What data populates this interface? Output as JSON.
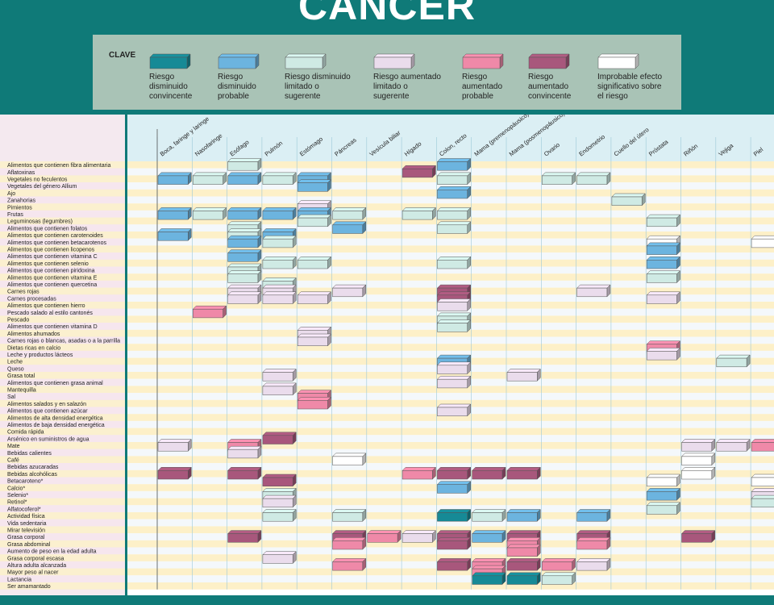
{
  "title": "CÁNCER",
  "legend": {
    "title": "CLAVE",
    "items": [
      {
        "label": "Riesgo\ndisminuido\nconvincente",
        "color": "#168a96"
      },
      {
        "label": "Riesgo\ndisminuido\nprobable",
        "color": "#6cb4df"
      },
      {
        "label": "Riesgo disminuido\nlimitado o\nsugerente",
        "color": "#cfeae4"
      },
      {
        "label": "Riesgo aumentado\nlimitado o\nsugerente",
        "color": "#eadcec"
      },
      {
        "label": "Riesgo\naumentado\nprobable",
        "color": "#ef89a8"
      },
      {
        "label": "Riesgo\naumentado\nconvincente",
        "color": "#a8577c"
      },
      {
        "label": "Improbable efecto\nsignificativo sobre\nel riesgo",
        "color": "#ffffff"
      }
    ]
  },
  "chart_data": {
    "type": "table",
    "columns": [
      "Boca, faringe y laringe",
      "Nasofaringe",
      "Esófago",
      "Pulmón",
      "Estómago",
      "Páncreas",
      "Vesícula biliar",
      "Hígado",
      "Colon, recto",
      "Mama (premenopáusico)",
      "Mama (posmenopáusico)",
      "Ovario",
      "Endometrio",
      "Cuello del útero",
      "Próstata",
      "Riñón",
      "Vejiga",
      "Piel"
    ],
    "rows": [
      "Alimentos que contienen fibra alimentaria",
      "Aflatoxinas",
      "Vegetales no feculentos",
      "Vegetales del género Allium",
      "Ajo",
      "Zanahorias",
      "Pimientos",
      "Frutas",
      "Leguminosas (legumbres)",
      "Alimentos que contienen folatos",
      "Alimentos que contienen carotenoides",
      "Alimentos que contienen betacarotenos",
      "Alimentos que contienen licopenos",
      "Alimentos que contienen vitamina C",
      "Alimentos que contienen selenio",
      "Alimentos que contienen piridoxina",
      "Alimentos que contienen vitamina E",
      "Alimentos que contienen quercetina",
      "Carnes rojas",
      "Carnes procesadas",
      "Alimentos que contienen hierro",
      "Pescado salado al estilo cantonés",
      "Pescado",
      "Alimentos que contienen vitamina D",
      "Alimentos ahumados",
      "Carnes rojas o blancas, asadas o a la parrilla",
      "Dietas ricas en calcio",
      "Leche y productos lácteos",
      "Leche",
      "Queso",
      "Grasa total",
      "Alimentos que contienen grasa animal",
      "Mantequilla",
      "Sal",
      "Alimentos salados y en salazón",
      "Alimentos que contienen azúcar",
      "Alimentos de alta densidad energética",
      "Alimentos de baja densidad energética",
      "Comida rápida",
      "Arsénico en suministros de agua",
      "Mate",
      "Bebidas calientes",
      "Café",
      "Bebidas azucaradas",
      "Bebidas alcohólicas",
      "Betacaroteno*",
      "Calcio*",
      "Selenio*",
      "Retinol*",
      "Alfatocoferol*",
      "Actividad física",
      "Vida sedentaria",
      "Mirar televisión",
      "Grasa corporal",
      "Grasa abdominal",
      "Aumento de peso en la edad adulta",
      "Grasa corporal escasa",
      "Altura adulta alcanzada",
      "Mayor peso al nacer",
      "Lactancia",
      "Ser amamantado"
    ],
    "cells": [
      {
        "row": 0,
        "col": 2,
        "level": "limitado-disminuido"
      },
      {
        "row": 0,
        "col": 8,
        "level": "probable-disminuido"
      },
      {
        "row": 1,
        "col": 7,
        "level": "convincente-aumentado"
      },
      {
        "row": 2,
        "col": 0,
        "level": "probable-disminuido"
      },
      {
        "row": 2,
        "col": 1,
        "level": "limitado-disminuido"
      },
      {
        "row": 2,
        "col": 2,
        "level": "probable-disminuido"
      },
      {
        "row": 2,
        "col": 3,
        "level": "limitado-disminuido"
      },
      {
        "row": 2,
        "col": 4,
        "level": "probable-disminuido"
      },
      {
        "row": 2,
        "col": 8,
        "level": "limitado-disminuido"
      },
      {
        "row": 2,
        "col": 11,
        "level": "limitado-disminuido"
      },
      {
        "row": 2,
        "col": 12,
        "level": "limitado-disminuido"
      },
      {
        "row": 3,
        "col": 4,
        "level": "probable-disminuido"
      },
      {
        "row": 4,
        "col": 8,
        "level": "probable-disminuido"
      },
      {
        "row": 5,
        "col": 13,
        "level": "limitado-disminuido"
      },
      {
        "row": 6,
        "col": 4,
        "level": "limitado-aumentado"
      },
      {
        "row": 7,
        "col": 0,
        "level": "probable-disminuido"
      },
      {
        "row": 7,
        "col": 1,
        "level": "limitado-disminuido"
      },
      {
        "row": 7,
        "col": 2,
        "level": "probable-disminuido"
      },
      {
        "row": 7,
        "col": 3,
        "level": "probable-disminuido"
      },
      {
        "row": 7,
        "col": 4,
        "level": "probable-disminuido"
      },
      {
        "row": 7,
        "col": 5,
        "level": "limitado-disminuido"
      },
      {
        "row": 7,
        "col": 7,
        "level": "limitado-disminuido"
      },
      {
        "row": 7,
        "col": 8,
        "level": "limitado-disminuido"
      },
      {
        "row": 8,
        "col": 4,
        "level": "limitado-disminuido"
      },
      {
        "row": 8,
        "col": 14,
        "level": "limitado-disminuido"
      },
      {
        "row": 9,
        "col": 2,
        "level": "limitado-disminuido"
      },
      {
        "row": 9,
        "col": 5,
        "level": "probable-disminuido"
      },
      {
        "row": 9,
        "col": 8,
        "level": "limitado-disminuido"
      },
      {
        "row": 10,
        "col": 0,
        "level": "probable-disminuido"
      },
      {
        "row": 10,
        "col": 2,
        "level": "limitado-disminuido"
      },
      {
        "row": 10,
        "col": 3,
        "level": "probable-disminuido"
      },
      {
        "row": 11,
        "col": 2,
        "level": "probable-disminuido"
      },
      {
        "row": 11,
        "col": 3,
        "level": "limitado-disminuido"
      },
      {
        "row": 11,
        "col": 14,
        "level": "improbable"
      },
      {
        "row": 11,
        "col": 17,
        "level": "improbable"
      },
      {
        "row": 12,
        "col": 14,
        "level": "probable-disminuido"
      },
      {
        "row": 13,
        "col": 2,
        "level": "probable-disminuido"
      },
      {
        "row": 14,
        "col": 3,
        "level": "limitado-disminuido"
      },
      {
        "row": 14,
        "col": 4,
        "level": "limitado-disminuido"
      },
      {
        "row": 14,
        "col": 8,
        "level": "limitado-disminuido"
      },
      {
        "row": 14,
        "col": 14,
        "level": "probable-disminuido"
      },
      {
        "row": 15,
        "col": 2,
        "level": "limitado-disminuido"
      },
      {
        "row": 16,
        "col": 2,
        "level": "limitado-disminuido"
      },
      {
        "row": 16,
        "col": 14,
        "level": "limitado-disminuido"
      },
      {
        "row": 17,
        "col": 3,
        "level": "limitado-disminuido"
      },
      {
        "row": 18,
        "col": 2,
        "level": "limitado-aumentado"
      },
      {
        "row": 18,
        "col": 3,
        "level": "limitado-aumentado"
      },
      {
        "row": 18,
        "col": 5,
        "level": "limitado-aumentado"
      },
      {
        "row": 18,
        "col": 8,
        "level": "convincente-aumentado"
      },
      {
        "row": 18,
        "col": 12,
        "level": "limitado-aumentado"
      },
      {
        "row": 19,
        "col": 2,
        "level": "limitado-aumentado"
      },
      {
        "row": 19,
        "col": 3,
        "level": "limitado-aumentado"
      },
      {
        "row": 19,
        "col": 4,
        "level": "limitado-aumentado"
      },
      {
        "row": 19,
        "col": 8,
        "level": "convincente-aumentado"
      },
      {
        "row": 19,
        "col": 14,
        "level": "limitado-aumentado"
      },
      {
        "row": 20,
        "col": 8,
        "level": "limitado-aumentado"
      },
      {
        "row": 21,
        "col": 1,
        "level": "probable-aumentado"
      },
      {
        "row": 22,
        "col": 8,
        "level": "limitado-disminuido"
      },
      {
        "row": 23,
        "col": 8,
        "level": "limitado-disminuido"
      },
      {
        "row": 24,
        "col": 4,
        "level": "limitado-aumentado"
      },
      {
        "row": 25,
        "col": 4,
        "level": "limitado-aumentado"
      },
      {
        "row": 26,
        "col": 14,
        "level": "probable-aumentado"
      },
      {
        "row": 27,
        "col": 14,
        "level": "limitado-aumentado"
      },
      {
        "row": 28,
        "col": 8,
        "level": "probable-disminuido"
      },
      {
        "row": 28,
        "col": 16,
        "level": "limitado-disminuido"
      },
      {
        "row": 29,
        "col": 8,
        "level": "limitado-aumentado"
      },
      {
        "row": 30,
        "col": 3,
        "level": "limitado-aumentado"
      },
      {
        "row": 30,
        "col": 10,
        "level": "limitado-aumentado"
      },
      {
        "row": 31,
        "col": 8,
        "level": "limitado-aumentado"
      },
      {
        "row": 32,
        "col": 3,
        "level": "limitado-aumentado"
      },
      {
        "row": 33,
        "col": 4,
        "level": "probable-aumentado"
      },
      {
        "row": 34,
        "col": 4,
        "level": "probable-aumentado"
      },
      {
        "row": 35,
        "col": 8,
        "level": "limitado-aumentado"
      },
      {
        "row": 39,
        "col": 3,
        "level": "convincente-aumentado"
      },
      {
        "row": 40,
        "col": 0,
        "level": "limitado-aumentado"
      },
      {
        "row": 40,
        "col": 2,
        "level": "probable-aumentado"
      },
      {
        "row": 40,
        "col": 15,
        "level": "limitado-aumentado"
      },
      {
        "row": 40,
        "col": 16,
        "level": "limitado-aumentado"
      },
      {
        "row": 40,
        "col": 17,
        "level": "probable-aumentado"
      },
      {
        "row": 41,
        "col": 2,
        "level": "limitado-aumentado"
      },
      {
        "row": 42,
        "col": 5,
        "level": "improbable"
      },
      {
        "row": 42,
        "col": 15,
        "level": "improbable"
      },
      {
        "row": 44,
        "col": 0,
        "level": "convincente-aumentado"
      },
      {
        "row": 44,
        "col": 2,
        "level": "convincente-aumentado"
      },
      {
        "row": 44,
        "col": 7,
        "level": "probable-aumentado"
      },
      {
        "row": 44,
        "col": 8,
        "level": "convincente-aumentado"
      },
      {
        "row": 44,
        "col": 9,
        "level": "convincente-aumentado"
      },
      {
        "row": 44,
        "col": 10,
        "level": "convincente-aumentado"
      },
      {
        "row": 44,
        "col": 15,
        "level": "improbable"
      },
      {
        "row": 45,
        "col": 3,
        "level": "convincente-aumentado"
      },
      {
        "row": 45,
        "col": 14,
        "level": "improbable"
      },
      {
        "row": 45,
        "col": 17,
        "level": "improbable"
      },
      {
        "row": 46,
        "col": 8,
        "level": "probable-disminuido"
      },
      {
        "row": 47,
        "col": 3,
        "level": "limitado-disminuido"
      },
      {
        "row": 47,
        "col": 14,
        "level": "probable-disminuido"
      },
      {
        "row": 47,
        "col": 17,
        "level": "limitado-aumentado"
      },
      {
        "row": 48,
        "col": 3,
        "level": "limitado-aumentado"
      },
      {
        "row": 48,
        "col": 17,
        "level": "limitado-disminuido"
      },
      {
        "row": 49,
        "col": 14,
        "level": "limitado-disminuido"
      },
      {
        "row": 50,
        "col": 3,
        "level": "limitado-disminuido"
      },
      {
        "row": 50,
        "col": 5,
        "level": "limitado-disminuido"
      },
      {
        "row": 50,
        "col": 8,
        "level": "convincente-disminuido"
      },
      {
        "row": 50,
        "col": 9,
        "level": "limitado-disminuido"
      },
      {
        "row": 50,
        "col": 10,
        "level": "probable-disminuido"
      },
      {
        "row": 50,
        "col": 12,
        "level": "probable-disminuido"
      },
      {
        "row": 53,
        "col": 2,
        "level": "convincente-aumentado"
      },
      {
        "row": 53,
        "col": 5,
        "level": "convincente-aumentado"
      },
      {
        "row": 53,
        "col": 6,
        "level": "probable-aumentado"
      },
      {
        "row": 53,
        "col": 7,
        "level": "limitado-aumentado"
      },
      {
        "row": 53,
        "col": 8,
        "level": "convincente-aumentado"
      },
      {
        "row": 53,
        "col": 9,
        "level": "probable-disminuido"
      },
      {
        "row": 53,
        "col": 10,
        "level": "convincente-aumentado"
      },
      {
        "row": 53,
        "col": 12,
        "level": "convincente-aumentado"
      },
      {
        "row": 53,
        "col": 15,
        "level": "convincente-aumentado"
      },
      {
        "row": 54,
        "col": 5,
        "level": "probable-aumentado"
      },
      {
        "row": 54,
        "col": 8,
        "level": "convincente-aumentado"
      },
      {
        "row": 54,
        "col": 10,
        "level": "probable-aumentado"
      },
      {
        "row": 54,
        "col": 12,
        "level": "probable-aumentado"
      },
      {
        "row": 55,
        "col": 10,
        "level": "probable-aumentado"
      },
      {
        "row": 56,
        "col": 3,
        "level": "limitado-aumentado"
      },
      {
        "row": 57,
        "col": 5,
        "level": "probable-aumentado"
      },
      {
        "row": 57,
        "col": 8,
        "level": "convincente-aumentado"
      },
      {
        "row": 57,
        "col": 9,
        "level": "probable-aumentado"
      },
      {
        "row": 57,
        "col": 10,
        "level": "convincente-aumentado"
      },
      {
        "row": 57,
        "col": 11,
        "level": "probable-aumentado"
      },
      {
        "row": 57,
        "col": 12,
        "level": "limitado-aumentado"
      },
      {
        "row": 58,
        "col": 9,
        "level": "probable-aumentado"
      },
      {
        "row": 59,
        "col": 9,
        "level": "convincente-disminuido"
      },
      {
        "row": 59,
        "col": 10,
        "level": "convincente-disminuido"
      },
      {
        "row": 59,
        "col": 11,
        "level": "limitado-disminuido"
      }
    ],
    "colors": {
      "convincente-disminuido": "#168a96",
      "probable-disminuido": "#6cb4df",
      "limitado-disminuido": "#cfeae4",
      "limitado-aumentado": "#eadcec",
      "probable-aumentado": "#ef89a8",
      "convincente-aumentado": "#a8577c",
      "improbable": "#ffffff"
    }
  }
}
